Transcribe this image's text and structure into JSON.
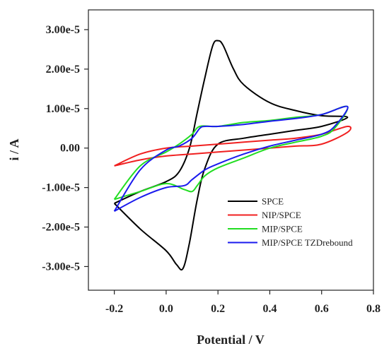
{
  "chart_data": {
    "type": "line",
    "title": "",
    "xlabel": "Potential / V",
    "ylabel": "i / A",
    "xlim": [
      -0.3,
      0.8
    ],
    "ylim": [
      -3.6e-05,
      3.5e-05
    ],
    "x_ticks": [
      -0.2,
      0.0,
      0.2,
      0.4,
      0.6,
      0.8
    ],
    "x_tick_labels": [
      "-0.2",
      "0.0",
      "0.2",
      "0.4",
      "0.6",
      "0.8"
    ],
    "y_ticks": [
      3e-05,
      2e-05,
      1e-05,
      0,
      -1e-05,
      -2e-05,
      -3e-05
    ],
    "y_tick_labels": [
      "3.00e-5",
      "2.00e-5",
      "1.00e-5",
      "0.00",
      "-1.00e-5",
      "-2.00e-5",
      "-3.00e-5"
    ],
    "grid": false,
    "legend_position": "bottom-right",
    "series": [
      {
        "name": "SPCE",
        "color": "#000000",
        "points": [
          [
            -0.2,
            -1.4e-05
          ],
          [
            -0.1,
            -1.1e-05
          ],
          [
            0.0,
            -8.5e-06
          ],
          [
            0.05,
            -6e-06
          ],
          [
            0.09,
            0.0
          ],
          [
            0.12,
            9e-06
          ],
          [
            0.15,
            1.8e-05
          ],
          [
            0.18,
            2.6e-05
          ],
          [
            0.2,
            2.72e-05
          ],
          [
            0.22,
            2.6e-05
          ],
          [
            0.26,
            2e-05
          ],
          [
            0.3,
            1.6e-05
          ],
          [
            0.4,
            1.15e-05
          ],
          [
            0.5,
            9.5e-06
          ],
          [
            0.6,
            8.2e-06
          ],
          [
            0.7,
            7.8e-06
          ],
          [
            0.6,
            5.5e-06
          ],
          [
            0.5,
            4.5e-06
          ],
          [
            0.4,
            3.5e-06
          ],
          [
            0.3,
            2.5e-06
          ],
          [
            0.2,
            1e-06
          ],
          [
            0.15,
            -5e-06
          ],
          [
            0.12,
            -1.3e-05
          ],
          [
            0.09,
            -2.4e-05
          ],
          [
            0.065,
            -3.05e-05
          ],
          [
            0.04,
            -2.95e-05
          ],
          [
            0.0,
            -2.6e-05
          ],
          [
            -0.1,
            -2.05e-05
          ],
          [
            -0.2,
            -1.4e-05
          ]
        ]
      },
      {
        "name": "NIP/SPCE",
        "color": "#f02020",
        "points": [
          [
            -0.2,
            -4.5e-06
          ],
          [
            -0.1,
            -1.5e-06
          ],
          [
            0.0,
            0.0
          ],
          [
            0.1,
            5e-07
          ],
          [
            0.2,
            1e-06
          ],
          [
            0.3,
            1.5e-06
          ],
          [
            0.4,
            2e-06
          ],
          [
            0.5,
            2.5e-06
          ],
          [
            0.6,
            3.5e-06
          ],
          [
            0.7,
            5.5e-06
          ],
          [
            0.7,
            4e-06
          ],
          [
            0.6,
            1e-06
          ],
          [
            0.5,
            5e-07
          ],
          [
            0.4,
            0.0
          ],
          [
            0.3,
            -5e-07
          ],
          [
            0.2,
            -1e-06
          ],
          [
            0.1,
            -1.5e-06
          ],
          [
            0.0,
            -2e-06
          ],
          [
            -0.1,
            -3e-06
          ],
          [
            -0.2,
            -4.5e-06
          ]
        ]
      },
      {
        "name": "MIP/SPCE",
        "color": "#22dd22",
        "points": [
          [
            -0.2,
            -1.3e-05
          ],
          [
            -0.1,
            -4.5e-06
          ],
          [
            0.0,
            -1e-06
          ],
          [
            0.05,
            1e-06
          ],
          [
            0.1,
            3.5e-06
          ],
          [
            0.13,
            5.5e-06
          ],
          [
            0.2,
            5.5e-06
          ],
          [
            0.3,
            6.5e-06
          ],
          [
            0.4,
            7e-06
          ],
          [
            0.5,
            7.8e-06
          ],
          [
            0.6,
            8.5e-06
          ],
          [
            0.7,
            1.05e-05
          ],
          [
            0.65,
            5e-06
          ],
          [
            0.6,
            3e-06
          ],
          [
            0.5,
            1.5e-06
          ],
          [
            0.4,
            0.0
          ],
          [
            0.3,
            -2.5e-06
          ],
          [
            0.2,
            -5e-06
          ],
          [
            0.15,
            -7e-06
          ],
          [
            0.12,
            -9.5e-06
          ],
          [
            0.1,
            -1.1e-05
          ],
          [
            0.07,
            -1.05e-05
          ],
          [
            0.0,
            -9e-06
          ],
          [
            -0.1,
            -1.1e-05
          ],
          [
            -0.2,
            -1.3e-05
          ]
        ]
      },
      {
        "name": "MIP/SPCE TZDrebound",
        "color": "#1a1aee",
        "points": [
          [
            -0.2,
            -1.6e-05
          ],
          [
            -0.1,
            -5.5e-06
          ],
          [
            0.0,
            -5e-07
          ],
          [
            0.05,
            5e-07
          ],
          [
            0.1,
            2.5e-06
          ],
          [
            0.13,
            5e-06
          ],
          [
            0.15,
            5.5e-06
          ],
          [
            0.2,
            5.5e-06
          ],
          [
            0.3,
            6e-06
          ],
          [
            0.4,
            6.8e-06
          ],
          [
            0.5,
            7.5e-06
          ],
          [
            0.6,
            8.5e-06
          ],
          [
            0.7,
            1.05e-05
          ],
          [
            0.65,
            5.5e-06
          ],
          [
            0.6,
            3.5e-06
          ],
          [
            0.5,
            2e-06
          ],
          [
            0.4,
            5e-07
          ],
          [
            0.3,
            -1.5e-06
          ],
          [
            0.2,
            -4e-06
          ],
          [
            0.15,
            -5.5e-06
          ],
          [
            0.1,
            -8e-06
          ],
          [
            0.07,
            -9.5e-06
          ],
          [
            0.0,
            -1e-05
          ],
          [
            -0.1,
            -1.25e-05
          ],
          [
            -0.2,
            -1.6e-05
          ]
        ]
      }
    ]
  }
}
